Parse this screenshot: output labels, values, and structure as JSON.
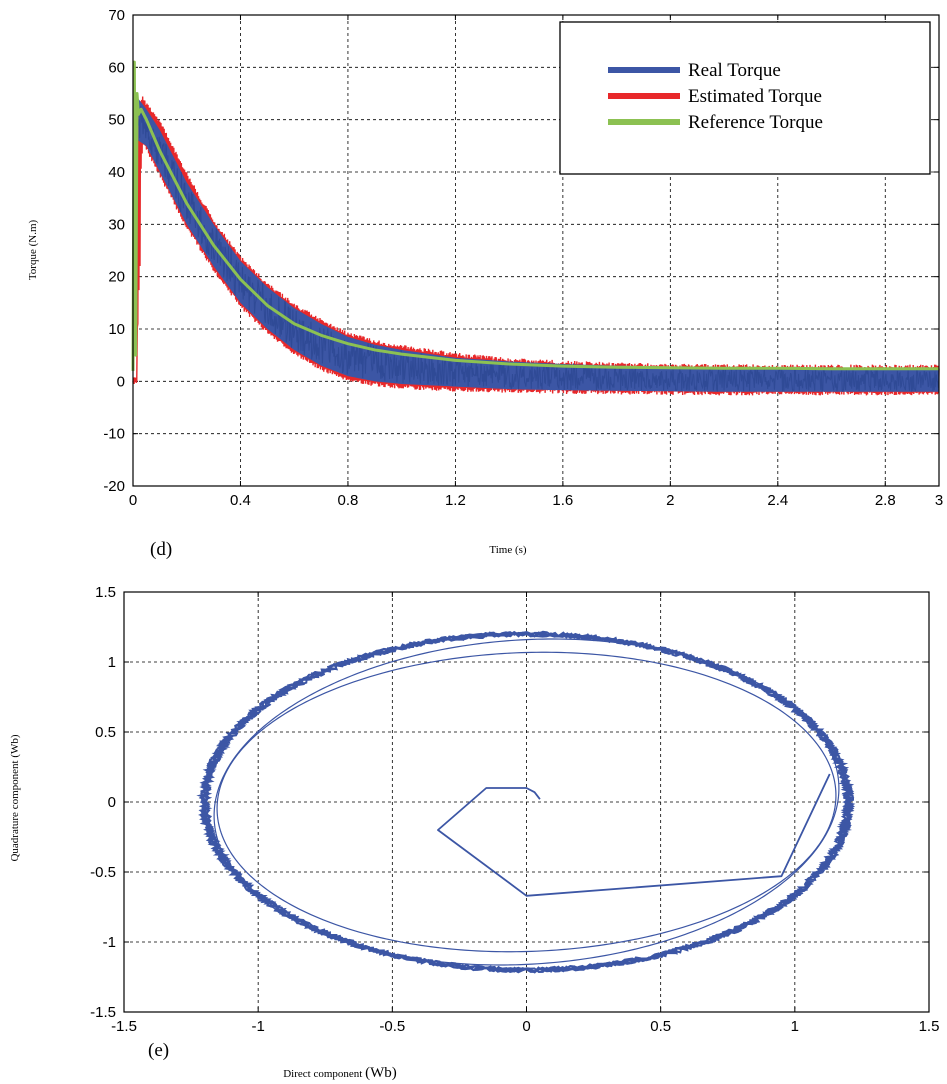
{
  "chart_data": [
    {
      "type": "line",
      "panel_label": "(d)",
      "title": "",
      "xlabel": "Time (s)",
      "ylabel": "Torque (N.m)",
      "xlim": [
        0,
        3
      ],
      "ylim": [
        -20,
        70
      ],
      "xticks": [
        0,
        0.4,
        0.8,
        1.2,
        1.6,
        2,
        2.4,
        2.8,
        3
      ],
      "xtick_labels": [
        "0",
        "0.4",
        "0.8",
        "1.2",
        "1.6",
        "2",
        "2.4",
        "2.8",
        "3"
      ],
      "yticks": [
        -20,
        -10,
        0,
        10,
        20,
        30,
        40,
        50,
        60,
        70
      ],
      "ytick_labels": [
        "-20",
        "-10",
        "0",
        "10",
        "20",
        "30",
        "40",
        "50",
        "60",
        "70"
      ],
      "grid": true,
      "legend_position": "top-right",
      "series": [
        {
          "name": "Real Torque",
          "color": "#3c56a5",
          "x": [
            0.02,
            0.05,
            0.1,
            0.2,
            0.3,
            0.4,
            0.5,
            0.6,
            0.7,
            0.8,
            0.9,
            1.0,
            1.2,
            1.4,
            1.6,
            1.8,
            2.0,
            2.2,
            2.4,
            2.6,
            2.8,
            3.0
          ],
          "upper": [
            54,
            52,
            48,
            38,
            30,
            23,
            18,
            14,
            11,
            8.5,
            7,
            6,
            4.5,
            3.8,
            3.3,
            3,
            2.8,
            2.7,
            2.6,
            2.5,
            2.4,
            2.4
          ],
          "lower": [
            46,
            45,
            40,
            30,
            22,
            15,
            10,
            6,
            3,
            1,
            0,
            -0.5,
            -1,
            -1.5,
            -1.7,
            -1.8,
            -1.9,
            -2,
            -2,
            -2,
            -2,
            -2
          ]
        },
        {
          "name": "Estimated Torque",
          "color": "#e8282a",
          "x": [
            0,
            0.005,
            0.01,
            0.015,
            0.02,
            0.025,
            0.03,
            0.035,
            0.04,
            0.1,
            0.2,
            0.3,
            0.4,
            0.5,
            0.6,
            0.7,
            0.8,
            0.9,
            1.0,
            1.2,
            1.4,
            1.6,
            1.8,
            2.0,
            2.2,
            2.4,
            2.6,
            2.8,
            3.0
          ],
          "upper": [
            0,
            0,
            0,
            0,
            52,
            54,
            54,
            55,
            54,
            50,
            40,
            31,
            24,
            19,
            15,
            12,
            9.5,
            8,
            7,
            5.5,
            4.5,
            4,
            3.6,
            3.4,
            3.3,
            3.2,
            3.2,
            3.2,
            3.2
          ],
          "lower": [
            0,
            0,
            0,
            0,
            17,
            17,
            40,
            44,
            45,
            39,
            29,
            21,
            14,
            9,
            5,
            2,
            0,
            -1,
            -1.5,
            -2,
            -2.2,
            -2.4,
            -2.5,
            -2.6,
            -2.7,
            -2.7,
            -2.7,
            -2.7,
            -2.7
          ]
        },
        {
          "name": "Reference Torque",
          "color": "#8cc152",
          "x": [
            0,
            0.005,
            0.01,
            0.015,
            0.02,
            0.03,
            0.05,
            0.1,
            0.2,
            0.3,
            0.4,
            0.5,
            0.6,
            0.7,
            0.8,
            0.9,
            1.0,
            1.2,
            1.4,
            1.6,
            1.8,
            2.0,
            2.2,
            2.4,
            2.6,
            2.8,
            3.0
          ],
          "y": [
            2,
            61,
            5,
            55,
            51,
            52,
            50,
            44,
            34,
            26,
            19.5,
            14.5,
            11,
            8.8,
            7.2,
            6,
            5.2,
            4,
            3.3,
            2.9,
            2.7,
            2.6,
            2.5,
            2.5,
            2.4,
            2.4,
            2.4
          ]
        }
      ]
    },
    {
      "type": "line",
      "panel_label": "(e)",
      "title": "",
      "xlabel_main": "Direct component ",
      "xlabel_unit": "(Wb)",
      "ylabel": "Quadrature component (Wb)",
      "xlim": [
        -1.5,
        1.5
      ],
      "ylim": [
        -1.5,
        1.5
      ],
      "xticks": [
        -1.5,
        -1,
        -0.5,
        0,
        0.5,
        1,
        1.5
      ],
      "xtick_labels": [
        "-1.5",
        "-1",
        "-0.5",
        "0",
        "0.5",
        "1",
        "1.5"
      ],
      "yticks": [
        -1.5,
        -1,
        -0.5,
        0,
        0.5,
        1,
        1.5
      ],
      "ytick_labels": [
        "-1.5",
        "-1",
        "-0.5",
        "0",
        "0.5",
        "1",
        "1.5"
      ],
      "grid": true,
      "series": [
        {
          "name": "",
          "color": "#3c56a5",
          "circle_radius": 1.2,
          "transient_x": [
            0.05,
            0.03,
            0.0,
            -0.15,
            -0.33,
            0.0,
            0.95,
            1.13
          ],
          "transient_y": [
            0.02,
            0.07,
            0.1,
            0.1,
            -0.2,
            -0.67,
            -0.53,
            0.2
          ]
        }
      ]
    }
  ]
}
